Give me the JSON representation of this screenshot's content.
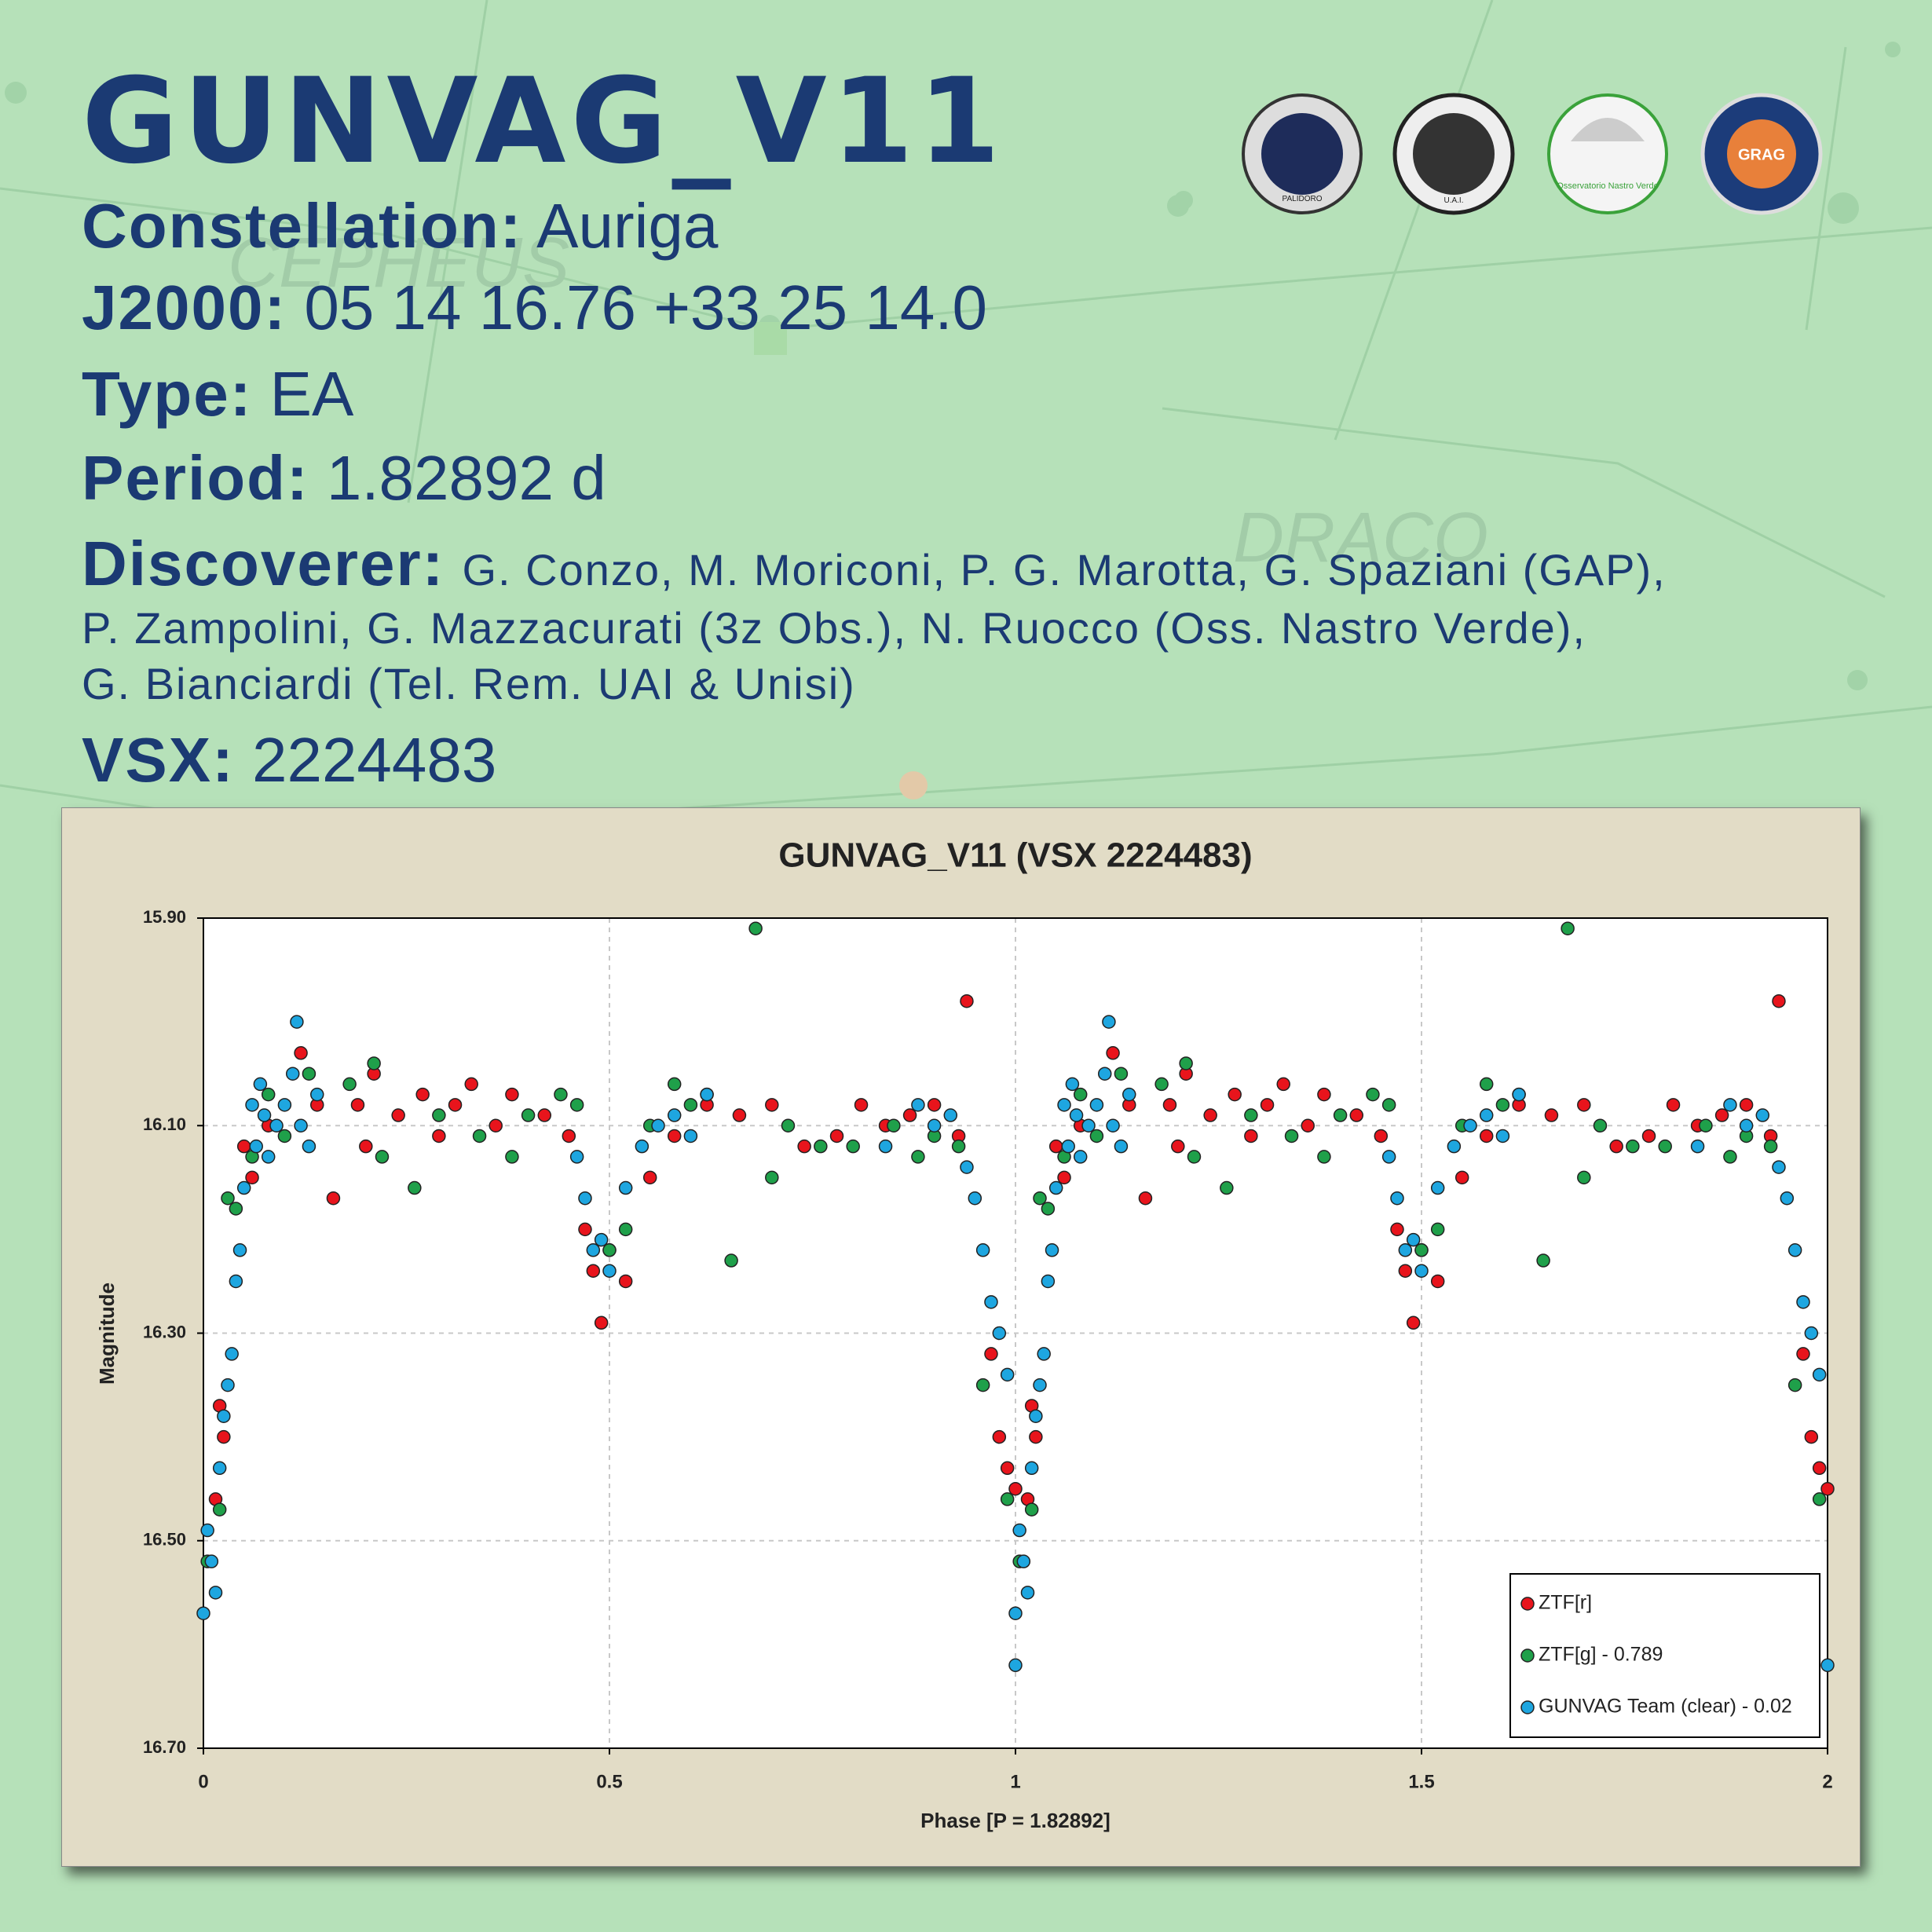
{
  "background_labels": [
    "CEPHEUS",
    "DRACO"
  ],
  "logos": [
    "PALIDORO",
    "U.A.I.",
    "Osservatorio Nastro Verde",
    "GRAG"
  ],
  "header": {
    "title": "GUNVAG_V11",
    "fields": [
      {
        "label": "Constellation:",
        "value": "Auriga"
      },
      {
        "label": "J2000:",
        "value": "05 14 16.76 +33 25 14.0"
      },
      {
        "label": "Type:",
        "value": "EA"
      },
      {
        "label": "Period:",
        "value": "1.82892 d"
      }
    ],
    "discoverer_label": "Discoverer:",
    "discoverer_lines": [
      "G. Conzo, M. Moriconi, P. G. Marotta, G. Spaziani (GAP),",
      "P. Zampolini, G. Mazzacurati (3z Obs.), N. Ruocco (Oss. Nastro Verde),",
      "G. Bianciardi (Tel. Rem. UAI & Unisi)"
    ],
    "vsx_label": "VSX:",
    "vsx_value": "2224483"
  },
  "chart_data": {
    "type": "scatter",
    "title": "GUNVAG_V11 (VSX 2224483)",
    "xlabel": "Phase [P = 1.82892]",
    "ylabel": "Magnitude",
    "xlim": [
      0,
      2
    ],
    "xticks": [
      0,
      0.5,
      1,
      1.5,
      2
    ],
    "ylim": [
      15.9,
      16.7
    ],
    "y_inverted": true,
    "yticks": [
      {
        "value": 15.9,
        "label": "15.90"
      },
      {
        "value": 16.1,
        "label": "16.10"
      },
      {
        "value": 16.3,
        "label": "16.30"
      },
      {
        "value": 16.5,
        "label": "16.50"
      },
      {
        "value": 16.7,
        "label": "16.70"
      }
    ],
    "grid": true,
    "legend": "lower right",
    "series": [
      {
        "name": "ZTF[r]",
        "color": "#e8141c",
        "x": [
          0.015,
          0.02,
          0.025,
          0.05,
          0.06,
          0.08,
          0.12,
          0.14,
          0.16,
          0.19,
          0.2,
          0.21,
          0.24,
          0.27,
          0.29,
          0.31,
          0.33,
          0.36,
          0.38,
          0.42,
          0.45,
          0.47,
          0.48,
          0.49,
          0.5,
          0.52,
          0.55,
          0.58,
          0.62,
          0.66,
          0.7,
          0.74,
          0.78,
          0.81,
          0.84,
          0.87,
          0.9,
          0.93,
          0.94,
          0.97,
          0.98,
          0.99,
          1.0,
          1.015,
          1.02,
          1.025,
          1.05,
          1.06,
          1.08,
          1.12,
          1.14,
          1.16,
          1.19,
          1.2,
          1.21,
          1.24,
          1.27,
          1.29,
          1.31,
          1.33,
          1.36,
          1.38,
          1.42,
          1.45,
          1.47,
          1.48,
          1.49,
          1.5,
          1.52,
          1.55,
          1.58,
          1.62,
          1.66,
          1.7,
          1.74,
          1.78,
          1.81,
          1.84,
          1.87,
          1.9,
          1.93,
          1.94,
          1.97,
          1.98,
          1.99,
          2.0
        ],
        "values": [
          16.46,
          16.37,
          16.4,
          16.12,
          16.15,
          16.1,
          16.03,
          16.08,
          16.17,
          16.08,
          16.12,
          16.05,
          16.09,
          16.07,
          16.11,
          16.08,
          16.06,
          16.1,
          16.07,
          16.09,
          16.11,
          16.2,
          16.24,
          16.29,
          16.22,
          16.25,
          16.15,
          16.11,
          16.08,
          16.09,
          16.08,
          16.12,
          16.11,
          16.08,
          16.1,
          16.09,
          16.08,
          16.11,
          15.98,
          16.32,
          16.4,
          16.43,
          16.45,
          16.46,
          16.37,
          16.4,
          16.12,
          16.15,
          16.1,
          16.03,
          16.08,
          16.17,
          16.08,
          16.12,
          16.05,
          16.09,
          16.07,
          16.11,
          16.08,
          16.06,
          16.1,
          16.07,
          16.09,
          16.11,
          16.2,
          16.24,
          16.29,
          16.22,
          16.25,
          16.15,
          16.11,
          16.08,
          16.09,
          16.08,
          16.12,
          16.11,
          16.08,
          16.1,
          16.09,
          16.08,
          16.11,
          15.98,
          16.32,
          16.4,
          16.43,
          16.45
        ]
      },
      {
        "name": "ZTF[g] - 0.789",
        "color": "#1fa04a",
        "x": [
          0.005,
          0.02,
          0.03,
          0.04,
          0.06,
          0.08,
          0.1,
          0.13,
          0.18,
          0.21,
          0.22,
          0.26,
          0.29,
          0.34,
          0.38,
          0.4,
          0.44,
          0.46,
          0.5,
          0.52,
          0.55,
          0.58,
          0.6,
          0.62,
          0.65,
          0.68,
          0.7,
          0.72,
          0.76,
          0.8,
          0.85,
          0.88,
          0.9,
          0.93,
          0.96,
          0.99,
          1.005,
          1.02,
          1.03,
          1.04,
          1.06,
          1.08,
          1.1,
          1.13,
          1.18,
          1.21,
          1.22,
          1.26,
          1.29,
          1.34,
          1.38,
          1.4,
          1.44,
          1.46,
          1.5,
          1.52,
          1.55,
          1.58,
          1.6,
          1.62,
          1.65,
          1.68,
          1.7,
          1.72,
          1.76,
          1.8,
          1.85,
          1.88,
          1.9,
          1.93,
          1.96,
          1.99
        ],
        "values": [
          16.52,
          16.47,
          16.17,
          16.18,
          16.13,
          16.07,
          16.11,
          16.05,
          16.06,
          16.04,
          16.13,
          16.16,
          16.09,
          16.11,
          16.13,
          16.09,
          16.07,
          16.08,
          16.22,
          16.2,
          16.1,
          16.06,
          16.08,
          16.07,
          16.23,
          15.91,
          16.15,
          16.1,
          16.12,
          16.12,
          16.1,
          16.13,
          16.11,
          16.12,
          16.35,
          16.46,
          16.52,
          16.47,
          16.17,
          16.18,
          16.13,
          16.07,
          16.11,
          16.05,
          16.06,
          16.04,
          16.13,
          16.16,
          16.09,
          16.11,
          16.13,
          16.09,
          16.07,
          16.08,
          16.22,
          16.2,
          16.1,
          16.06,
          16.08,
          16.07,
          16.23,
          15.91,
          16.15,
          16.1,
          16.12,
          16.12,
          16.1,
          16.13,
          16.11,
          16.12,
          16.35,
          16.46
        ]
      },
      {
        "name": "GUNVAG Team (clear) - 0.02",
        "color": "#1ea6e0",
        "x": [
          0.0,
          0.005,
          0.01,
          0.015,
          0.02,
          0.025,
          0.03,
          0.035,
          0.04,
          0.045,
          0.05,
          0.06,
          0.065,
          0.07,
          0.075,
          0.08,
          0.09,
          0.1,
          0.11,
          0.115,
          0.12,
          0.13,
          0.14,
          0.46,
          0.47,
          0.48,
          0.49,
          0.5,
          0.52,
          0.54,
          0.56,
          0.58,
          0.6,
          0.62,
          0.84,
          0.88,
          0.9,
          0.92,
          0.94,
          0.95,
          0.96,
          0.97,
          0.98,
          0.99,
          1.0,
          1.0,
          1.005,
          1.01,
          1.015,
          1.02,
          1.025,
          1.03,
          1.035,
          1.04,
          1.045,
          1.05,
          1.06,
          1.065,
          1.07,
          1.075,
          1.08,
          1.09,
          1.1,
          1.11,
          1.115,
          1.12,
          1.13,
          1.14,
          1.46,
          1.47,
          1.48,
          1.49,
          1.5,
          1.52,
          1.54,
          1.56,
          1.58,
          1.6,
          1.62,
          1.84,
          1.88,
          1.9,
          1.92,
          1.94,
          1.95,
          1.96,
          1.97,
          1.98,
          1.99,
          2.0
        ],
        "values": [
          16.57,
          16.49,
          16.52,
          16.55,
          16.43,
          16.38,
          16.35,
          16.32,
          16.25,
          16.22,
          16.16,
          16.08,
          16.12,
          16.06,
          16.09,
          16.13,
          16.1,
          16.08,
          16.05,
          16.0,
          16.1,
          16.12,
          16.07,
          16.13,
          16.17,
          16.22,
          16.21,
          16.24,
          16.16,
          16.12,
          16.1,
          16.09,
          16.11,
          16.07,
          16.12,
          16.08,
          16.1,
          16.09,
          16.14,
          16.17,
          16.22,
          16.27,
          16.3,
          16.34,
          16.62,
          16.57,
          16.49,
          16.52,
          16.55,
          16.43,
          16.38,
          16.35,
          16.32,
          16.25,
          16.22,
          16.16,
          16.08,
          16.12,
          16.06,
          16.09,
          16.13,
          16.1,
          16.08,
          16.05,
          16.0,
          16.1,
          16.12,
          16.07,
          16.13,
          16.17,
          16.22,
          16.21,
          16.24,
          16.16,
          16.12,
          16.1,
          16.09,
          16.11,
          16.07,
          16.12,
          16.08,
          16.1,
          16.09,
          16.14,
          16.17,
          16.22,
          16.27,
          16.3,
          16.34,
          16.62
        ]
      }
    ]
  }
}
